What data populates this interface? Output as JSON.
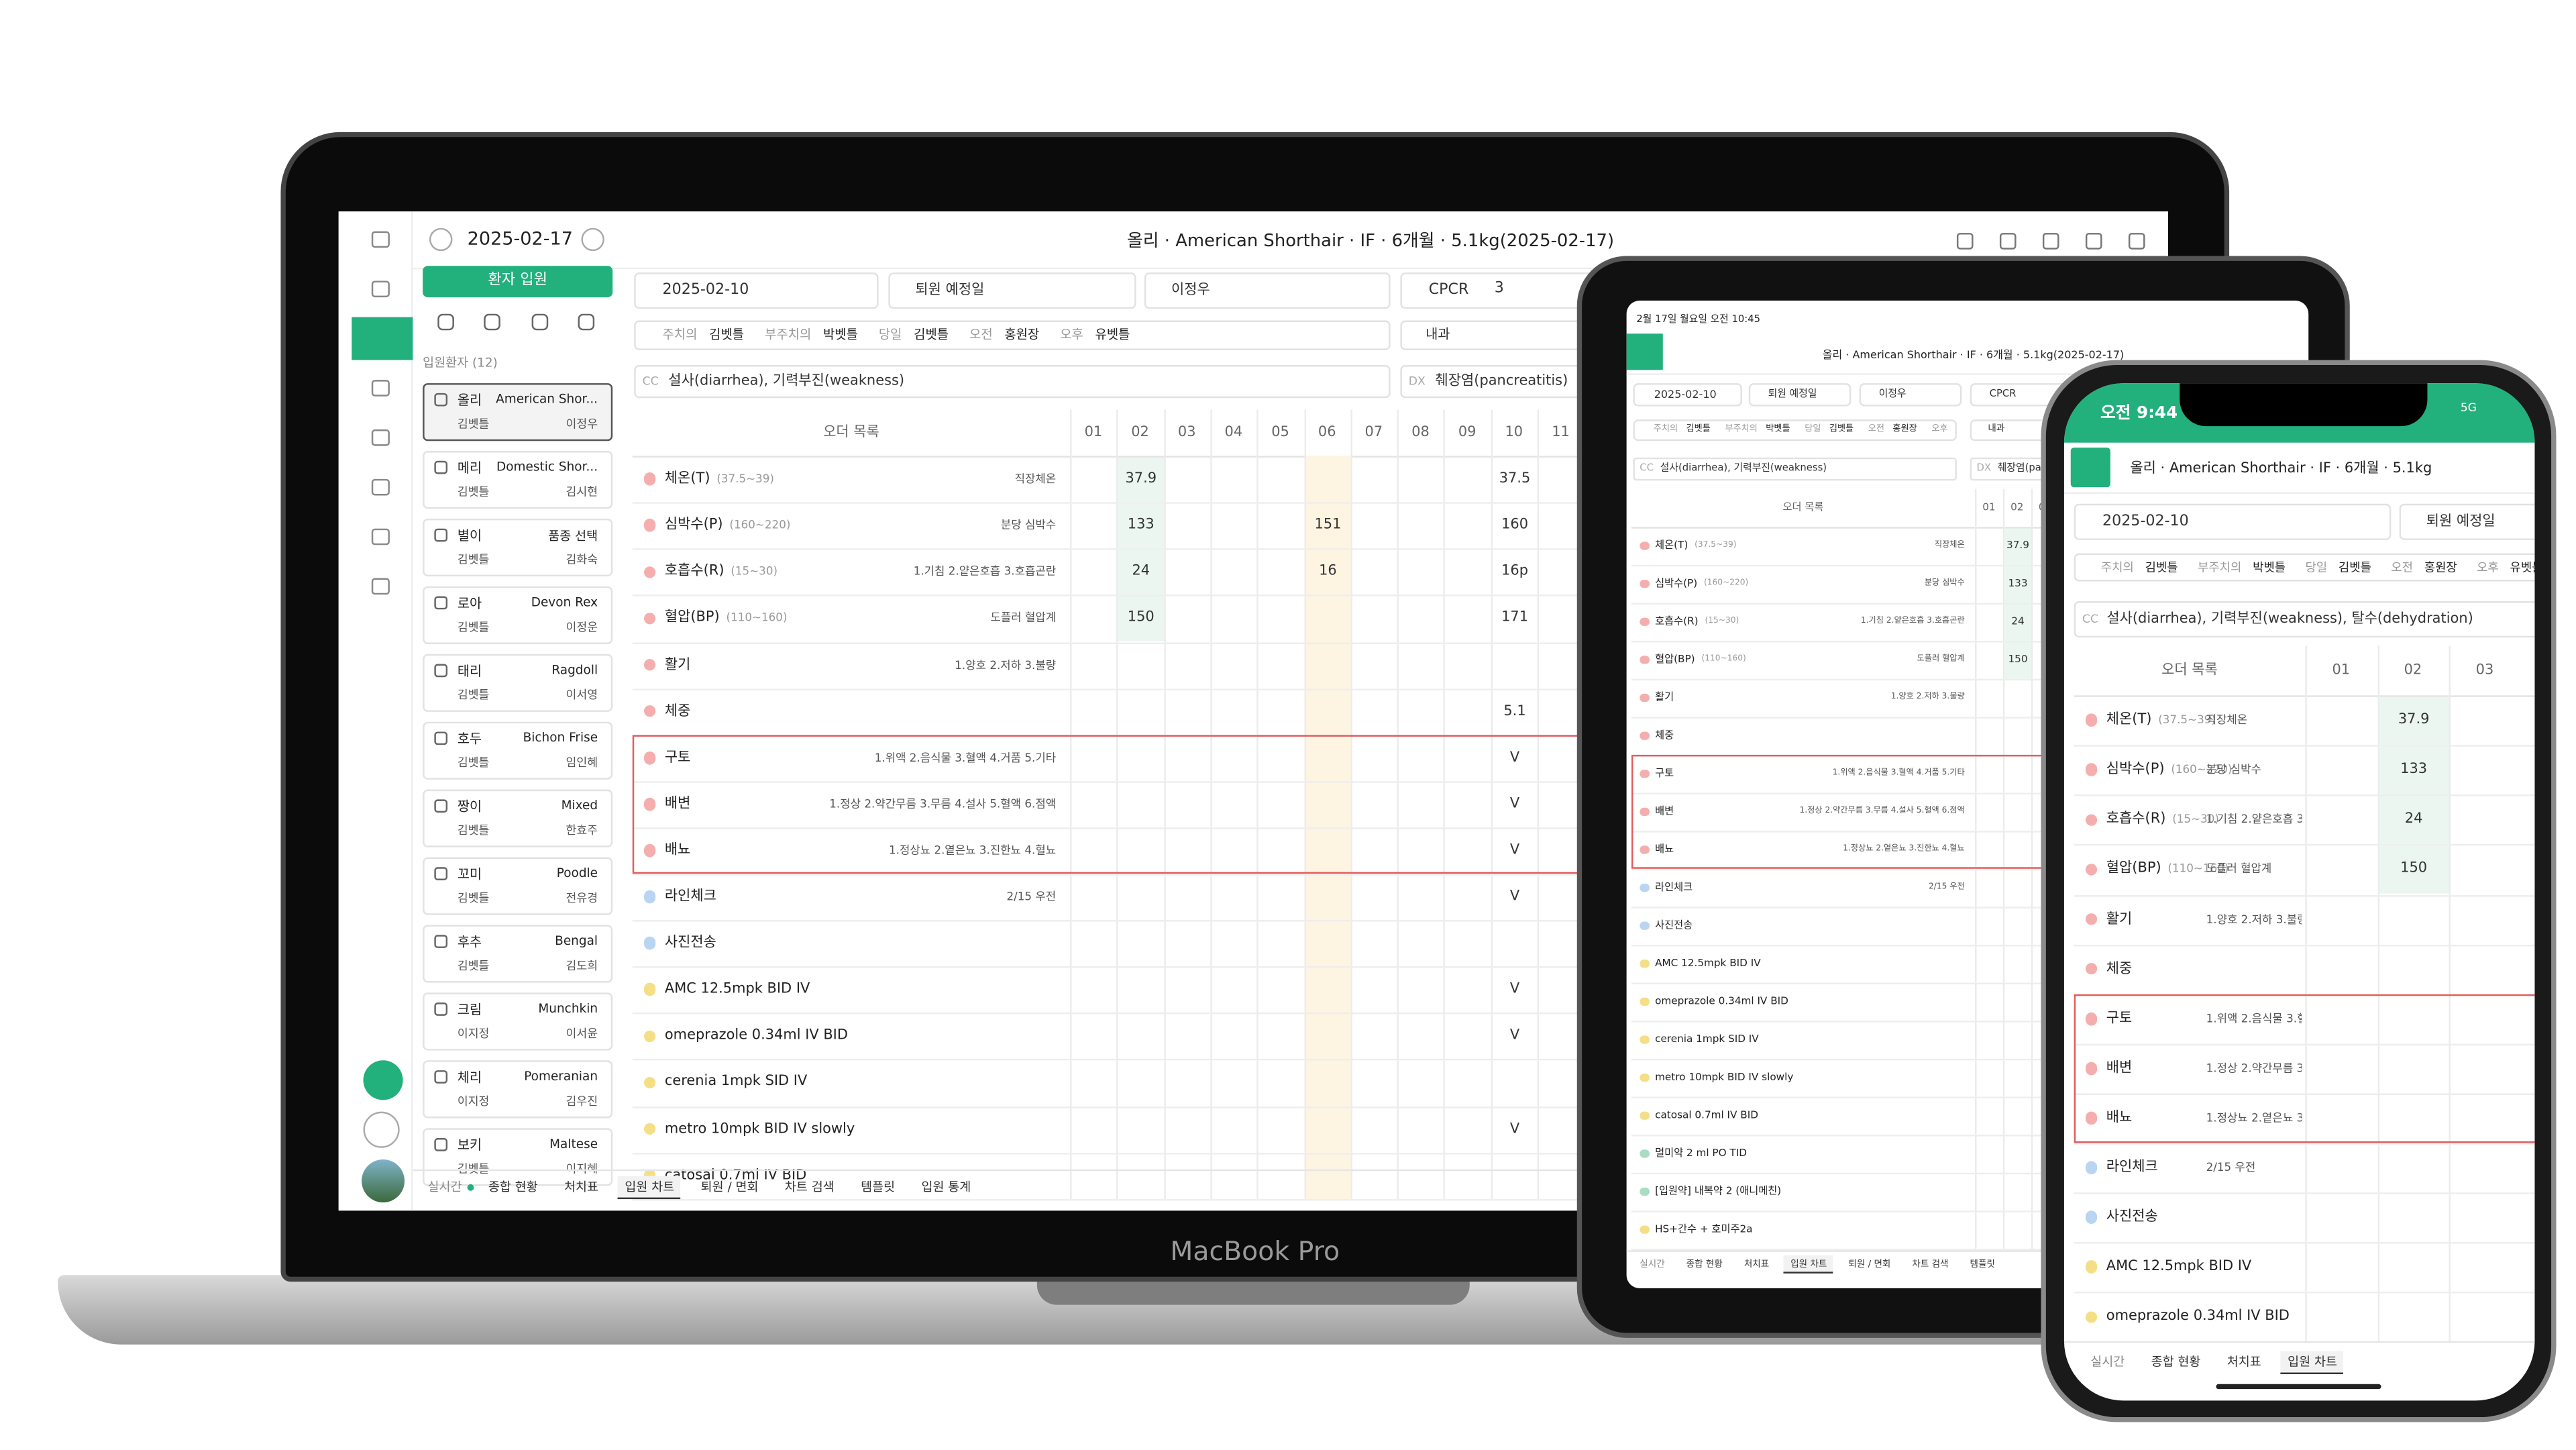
{
  "device_label": "MacBook Pro",
  "laptop": {
    "date": "2025-02-17",
    "title": "올리 · American Shorthair · IF · 6개월 · 5.1kg(2025-02-17)",
    "admit_button": "환자 입원",
    "list_title": "입원환자 (12)",
    "patients": [
      {
        "name": "올리",
        "breed": "American Shor...",
        "vet": "김벳틀",
        "nurse": "이정우"
      },
      {
        "name": "메리",
        "breed": "Domestic Shor...",
        "vet": "김벳틀",
        "nurse": "김시현"
      },
      {
        "name": "별이",
        "breed": "품종 선택",
        "vet": "김벳틀",
        "nurse": "김화숙"
      },
      {
        "name": "로아",
        "breed": "Devon Rex",
        "vet": "김벳틀",
        "nurse": "이정운"
      },
      {
        "name": "태리",
        "breed": "Ragdoll",
        "vet": "김벳틀",
        "nurse": "이서영"
      },
      {
        "name": "호두",
        "breed": "Bichon Frise",
        "vet": "김벳틀",
        "nurse": "임인혜"
      },
      {
        "name": "짱이",
        "breed": "Mixed",
        "vet": "김벳틀",
        "nurse": "한효주"
      },
      {
        "name": "꼬미",
        "breed": "Poodle",
        "vet": "김벳틀",
        "nurse": "전유경"
      },
      {
        "name": "후추",
        "breed": "Bengal",
        "vet": "김벳틀",
        "nurse": "김도희"
      },
      {
        "name": "크림",
        "breed": "Munchkin",
        "vet": "이지정",
        "nurse": "이서윤"
      },
      {
        "name": "체리",
        "breed": "Pomeranian",
        "vet": "이지정",
        "nurse": "김우진"
      },
      {
        "name": "보키",
        "breed": "Maltese",
        "vet": "김벳틀",
        "nurse": "이지혜"
      }
    ],
    "admit_date": "2025-02-10",
    "discharge": "퇴원 예정일",
    "doctor": "이정우",
    "cpcr": "CPCR",
    "cpcr_value": "3",
    "staff": [
      {
        "role": "주치의",
        "name": "김벳틀"
      },
      {
        "role": "부주치의",
        "name": "박벳틀"
      },
      {
        "role": "당일",
        "name": "김벳틀"
      },
      {
        "role": "오전",
        "name": "홍원장"
      },
      {
        "role": "오후",
        "name": "유벳틀"
      }
    ],
    "department": "내과",
    "cc_label": "CC",
    "cc": "설사(diarrhea), 기력부진(weakness)",
    "dx_label": "DX",
    "dx": "췌장염(pancreatitis)",
    "order_header": "오더 목록",
    "tabs": [
      "실시간",
      "종합 현황",
      "처치표",
      "입원 차트",
      "퇴원 / 면회",
      "차트 검색",
      "템플릿",
      "입원 통계"
    ]
  },
  "hours": [
    "01",
    "02",
    "03",
    "04",
    "05",
    "06",
    "07",
    "08",
    "09",
    "10",
    "11"
  ],
  "orders": [
    {
      "name": "체온(T)",
      "range": "(37.5~39)",
      "note": "직장체온",
      "cells": [
        null,
        "37.9",
        null,
        null,
        null,
        null,
        null,
        null,
        null,
        "37.5",
        null
      ]
    },
    {
      "name": "심박수(P)",
      "range": "(160~220)",
      "note": "분당 심박수",
      "cells": [
        null,
        "133",
        null,
        null,
        null,
        "151",
        null,
        null,
        null,
        "160",
        null
      ]
    },
    {
      "name": "호흡수(R)",
      "range": "(15~30)",
      "note": "1.기침 2.얕은호흡 3.호흡곤란",
      "cells": [
        null,
        "24",
        null,
        null,
        null,
        "16",
        null,
        null,
        null,
        "16p",
        null
      ]
    },
    {
      "name": "혈압(BP)",
      "range": "(110~160)",
      "note": "도플러 혈압계",
      "cells": [
        null,
        "150",
        null,
        null,
        null,
        null,
        null,
        null,
        null,
        "171",
        null
      ]
    },
    {
      "name": "활기",
      "note": "1.양호 2.저하 3.불량"
    },
    {
      "name": "체중",
      "cells": [
        null,
        null,
        null,
        null,
        null,
        null,
        null,
        null,
        null,
        "5.1",
        null
      ]
    },
    {
      "name": "구토",
      "note": "1.위액 2.음식물 3.혈액 4.거품 5.기타",
      "cells": [
        null,
        null,
        null,
        null,
        null,
        null,
        null,
        null,
        null,
        "V",
        null
      ]
    },
    {
      "name": "배변",
      "note": "1.정상 2.약간무름 3.무름 4.설사 5.혈액 6.점액",
      "cells": [
        null,
        null,
        null,
        null,
        null,
        null,
        null,
        null,
        null,
        "V",
        null
      ]
    },
    {
      "name": "배뇨",
      "note": "1.정상뇨 2.옅은뇨 3.진한뇨 4.혈뇨",
      "cells": [
        null,
        null,
        null,
        null,
        null,
        null,
        null,
        null,
        null,
        "V",
        null
      ]
    },
    {
      "name": "라인체크",
      "note": "2/15 우전",
      "kind": "blue",
      "cells": [
        null,
        null,
        null,
        null,
        null,
        null,
        null,
        null,
        null,
        "V",
        null
      ]
    },
    {
      "name": "사진전송",
      "kind": "blue"
    },
    {
      "name": "AMC 12.5mpk BID IV",
      "kind": "yellow",
      "cells": [
        null,
        null,
        null,
        null,
        null,
        null,
        null,
        null,
        null,
        "V",
        null
      ]
    },
    {
      "name": "omeprazole 0.34ml IV BID",
      "kind": "yellow",
      "cells": [
        null,
        null,
        null,
        null,
        null,
        null,
        null,
        null,
        null,
        "V",
        null
      ]
    },
    {
      "name": "cerenia 1mpk SID IV",
      "kind": "yellow"
    },
    {
      "name": "metro 10mpk BID IV slowly",
      "kind": "yellow",
      "cells": [
        null,
        null,
        null,
        null,
        null,
        null,
        null,
        null,
        null,
        "V",
        null
      ]
    },
    {
      "name": "catosal 0.7ml IV BID",
      "kind": "yellow"
    },
    {
      "name": "멀미약 2 ml PO TID",
      "kind": "green"
    },
    {
      "name": "[입원약] 내복약 2 (애니메친)",
      "kind": "green"
    },
    {
      "name": "HS+간수 + 호미주2a",
      "kind": "yellow"
    }
  ],
  "tablet": {
    "status": "2월 17일 월요일 오전 10:45",
    "title": "올리 · American Shorthair · IF · 6개월 · 5.1kg(2025-02-17)"
  },
  "phone": {
    "time": "오전 9:44",
    "network": "5G",
    "title": "올리 · American Shorthair · IF · 6개월 · 5.1kg",
    "cc": "설사(diarrhea), 기력부진(weakness), 탈수(dehydration)"
  }
}
